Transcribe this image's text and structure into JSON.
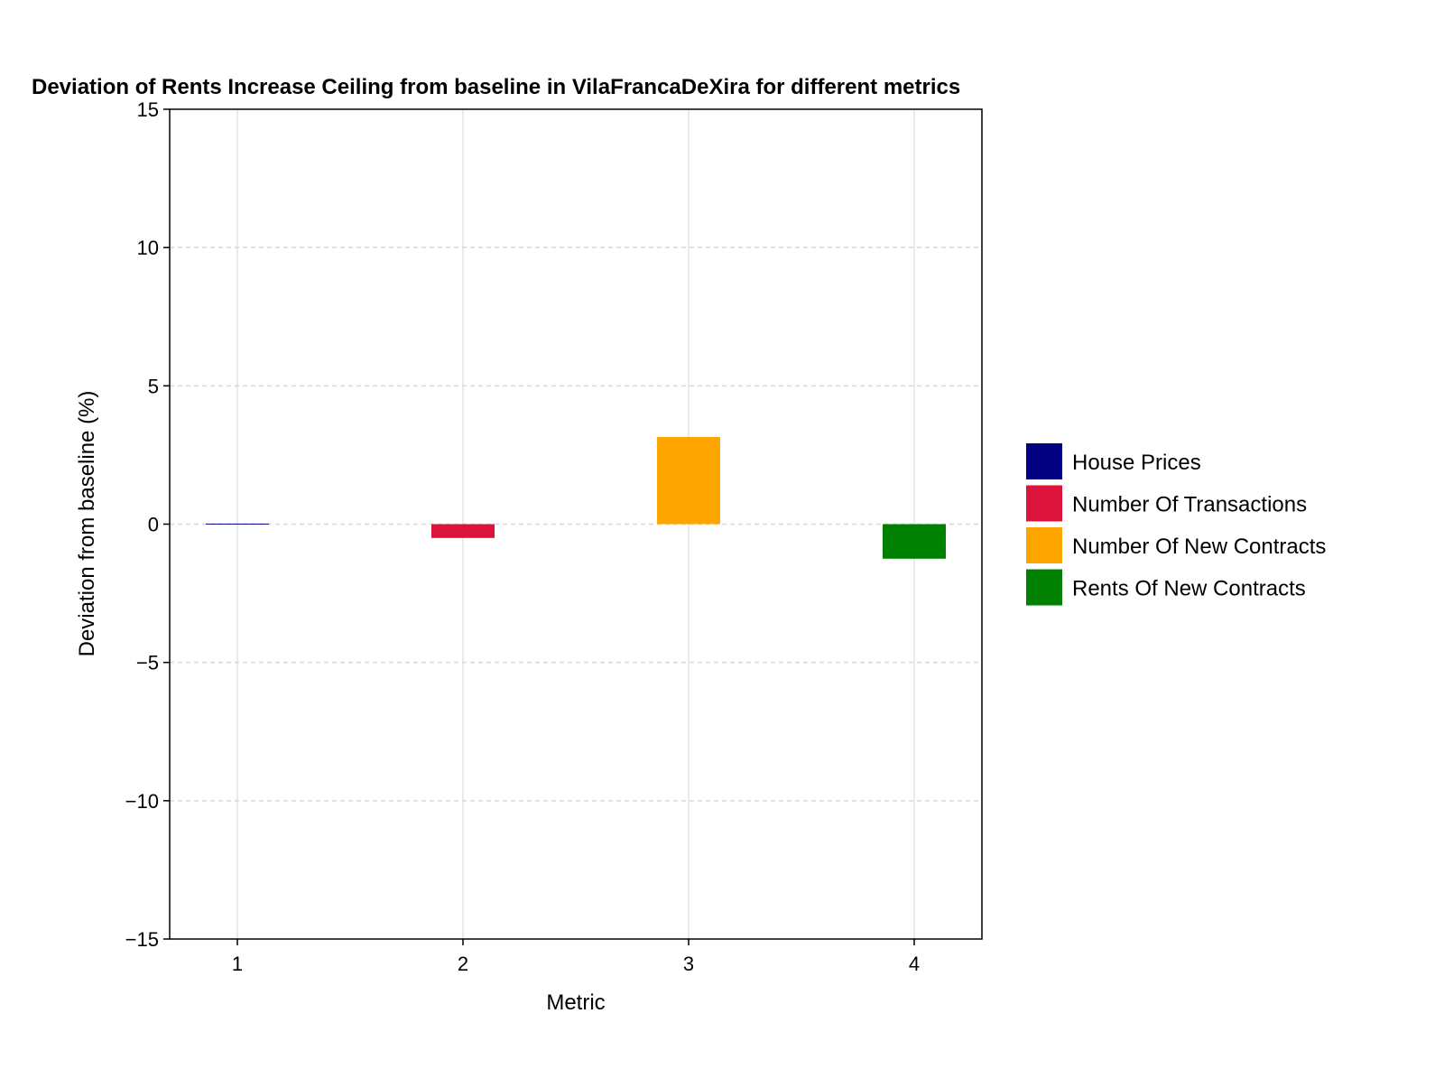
{
  "chart_data": {
    "type": "bar",
    "title": "Deviation of Rents Increase Ceiling from baseline in VilaFrancaDeXira for different metrics",
    "xlabel": "Metric",
    "ylabel": "Deviation from baseline (%)",
    "categories": [
      "1",
      "2",
      "3",
      "4"
    ],
    "x": [
      1,
      2,
      3,
      4
    ],
    "xlim": [
      0.7,
      4.3
    ],
    "ylim": [
      -15,
      15
    ],
    "yticks": [
      -15,
      -10,
      -5,
      0,
      5,
      10,
      15
    ],
    "ytick_labels": [
      "−15",
      "−10",
      "−5",
      "0",
      "5",
      "10",
      "15"
    ],
    "grid": true,
    "legend_position": "right",
    "series": [
      {
        "name": "House Prices",
        "x": 1,
        "value": 0.02,
        "color": "#000080"
      },
      {
        "name": "Number Of Transactions",
        "x": 2,
        "value": -0.5,
        "color": "#DC143C"
      },
      {
        "name": "Number Of New Contracts",
        "x": 3,
        "value": 3.15,
        "color": "#FFA500"
      },
      {
        "name": "Rents Of New Contracts",
        "x": 4,
        "value": -1.25,
        "color": "#008000"
      }
    ]
  }
}
